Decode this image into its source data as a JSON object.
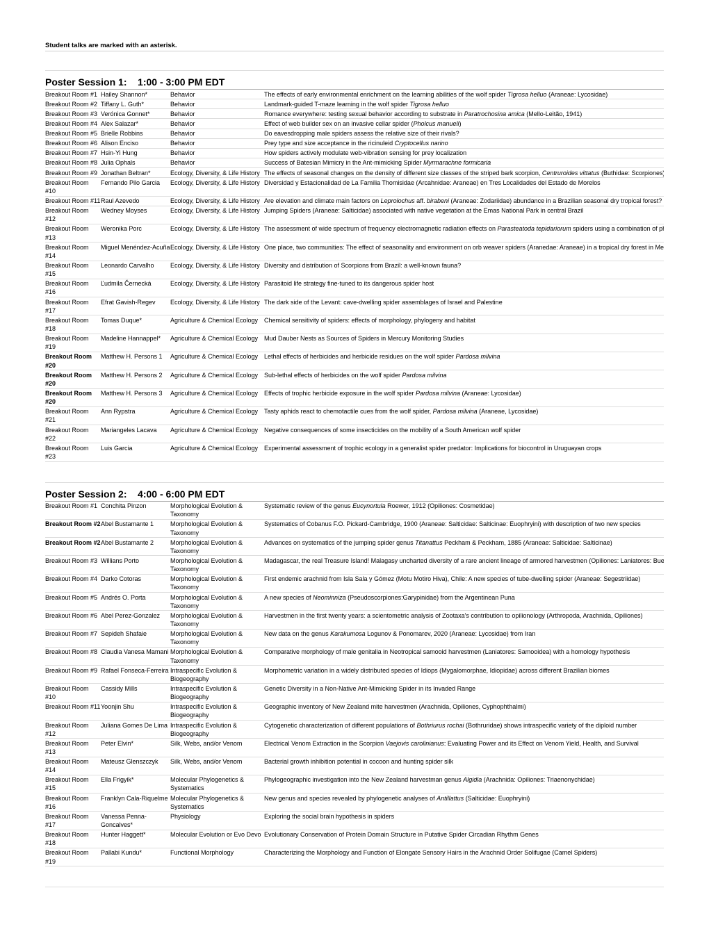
{
  "note": "Student talks are marked with an asterisk.",
  "sessions": [
    {
      "title_prefix": "Poster Session 1:",
      "title_time": "1:00 - 3:00 PM EDT",
      "rows": [
        {
          "room": "Breakout Room #1",
          "presenter": "Hailey Shannon*",
          "topic": "Behavior",
          "title_parts": [
            {
              "t": "The effects of early environmental enrichment on the learning abilities of the wolf spider "
            },
            {
              "t": "Tigrosa helluo",
              "i": true
            },
            {
              "t": " (Araneae: Lycosidae)"
            }
          ]
        },
        {
          "room": "Breakout Room #2",
          "presenter": "Tiffany L. Guth*",
          "topic": "Behavior",
          "title_parts": [
            {
              "t": "Landmark-guided T-maze learning in the wolf spider "
            },
            {
              "t": "Tigrosa helluo",
              "i": true
            }
          ]
        },
        {
          "room": "Breakout Room #3",
          "presenter": "Verónica Gonnet*",
          "topic": "Behavior",
          "title_parts": [
            {
              "t": "Romance everywhere: testing sexual behavior according to substrate in "
            },
            {
              "t": "Paratrochosina amica",
              "i": true
            },
            {
              "t": " (Mello-Leitão, 1941)"
            }
          ]
        },
        {
          "room": "Breakout Room #4",
          "presenter": "Alex Salazar*",
          "topic": "Behavior",
          "title_parts": [
            {
              "t": "Effect of web builder sex on an invasive cellar spider ("
            },
            {
              "t": "Pholcus manueli",
              "i": true
            },
            {
              "t": ")"
            }
          ]
        },
        {
          "room": "Breakout Room #5",
          "presenter": "Brielle Robbins",
          "topic": "Behavior",
          "title_parts": [
            {
              "t": "Do eavesdropping male spiders assess the relative size of their rivals?"
            }
          ]
        },
        {
          "room": "Breakout Room #6",
          "presenter": "Alison Enciso",
          "topic": "Behavior",
          "title_parts": [
            {
              "t": "Prey type and size acceptance in the ricinuleid "
            },
            {
              "t": "Cryptocellus narino",
              "i": true
            }
          ]
        },
        {
          "room": "Breakout Room #7",
          "presenter": "Hsin-Yi Hung",
          "topic": "Behavior",
          "title_parts": [
            {
              "t": "How spiders actively modulate web-vibration sensing for prey localization"
            }
          ]
        },
        {
          "room": "Breakout Room #8",
          "presenter": "Julia Ophals",
          "topic": "Behavior",
          "title_parts": [
            {
              "t": "Success of Batesian Mimicry in the Ant-mimicking Spider "
            },
            {
              "t": "Myrmarachne formicaria",
              "i": true
            }
          ]
        },
        {
          "room": "Breakout Room #9",
          "presenter": "Jonathan Beltran*",
          "topic": "Ecology, Diversity, & Life History",
          "title_parts": [
            {
              "t": "The effects of seasonal changes on the density of different size classes of the striped bark scorpion, "
            },
            {
              "t": "Centruroides vittatus",
              "i": true
            },
            {
              "t": " (Buthidae: Scorpiones)"
            }
          ]
        },
        {
          "room": "Breakout Room #10",
          "presenter": "Fernando Pilo Garcia",
          "topic": "Ecology, Diversity, & Life History",
          "title_parts": [
            {
              "t": "Diversidad y Estacionalidad de La Familia Thomisidae (Arcahnidae: Araneae) en Tres Localidades del Estado de Morelos"
            }
          ]
        },
        {
          "room": "Breakout Room #11",
          "presenter": "Raul Azevedo",
          "topic": "Ecology, Diversity, & Life History",
          "title_parts": [
            {
              "t": "Are elevation and climate main factors on "
            },
            {
              "t": "Leprolochus",
              "i": true
            },
            {
              "t": " aff. "
            },
            {
              "t": "birabeni",
              "i": true
            },
            {
              "t": " (Araneae: Zodariidae) abundance in a Brazilian seasonal dry tropical forest?"
            }
          ]
        },
        {
          "room": "Breakout Room #12",
          "presenter": "Wedney Moyses",
          "topic": "Ecology, Diversity, & Life History",
          "title_parts": [
            {
              "t": "Jumping Spiders (Araneae: Salticidae) associated with native vegetation at the Emas National Park in central Brazil"
            }
          ]
        },
        {
          "room": "Breakout Room #13",
          "presenter": "Weronika Porc",
          "topic": "Ecology, Diversity, & Life History",
          "title_parts": [
            {
              "t": "The assessment of wide spectrum of frequency electromagnetic radiation effects on "
            },
            {
              "t": "Parasteatoda tepidariorum",
              "i": true
            },
            {
              "t": " spiders using a combination of physiological and molecular markers"
            }
          ]
        },
        {
          "room": "Breakout Room #14",
          "presenter": "Miguel Menéndez-Acuña",
          "topic": "Ecology, Diversity, & Life History",
          "title_parts": [
            {
              "t": "One place, two communities: The effect of seasonality and environment on orb weaver spiders (Aranedae: Araneae) in a tropical dry forest in Mexico"
            }
          ]
        },
        {
          "room": "Breakout Room #15",
          "presenter": "Leonardo Carvalho",
          "topic": "Ecology, Diversity, & Life History",
          "title_parts": [
            {
              "t": "Diversity and distribution of Scorpions from Brazil: a well-known fauna?"
            }
          ]
        },
        {
          "room": "Breakout Room #16",
          "presenter": "Ľudmila Černecká",
          "topic": "Ecology, Diversity, & Life History",
          "title_parts": [
            {
              "t": "Parasitoid life strategy fine-tuned to its dangerous spider host"
            }
          ]
        },
        {
          "room": "Breakout Room #17",
          "presenter": "Efrat Gavish-Regev",
          "topic": "Ecology, Diversity, & Life History",
          "title_parts": [
            {
              "t": "The dark side of the Levant: cave-dwelling spider assemblages of Israel and Palestine"
            }
          ]
        },
        {
          "room": "Breakout Room #18",
          "presenter": "Tomas Duque*",
          "topic": "Agriculture & Chemical Ecology",
          "title_parts": [
            {
              "t": "Chemical sensitivity of spiders: effects of morphology, phylogeny and habitat"
            }
          ]
        },
        {
          "room": "Breakout Room #19",
          "presenter": "Madeline Hannappel*",
          "topic": "Agriculture & Chemical Ecology",
          "title_parts": [
            {
              "t": "Mud Dauber Nests as Sources of Spiders in Mercury Monitoring Studies"
            }
          ]
        },
        {
          "room": "Breakout Room #20",
          "room_bold": true,
          "presenter": "Matthew H. Persons 1",
          "topic": "Agriculture & Chemical Ecology",
          "title_parts": [
            {
              "t": "Lethal effects of herbicides and herbicide residues on the wolf spider "
            },
            {
              "t": "Pardosa milvina",
              "i": true
            }
          ]
        },
        {
          "room": "Breakout Room #20",
          "room_bold": true,
          "presenter": "Matthew H. Persons 2",
          "topic": "Agriculture & Chemical Ecology",
          "title_parts": [
            {
              "t": "Sub-lethal effects of herbicides on the wolf spider "
            },
            {
              "t": "Pardosa milvina",
              "i": true
            }
          ]
        },
        {
          "room": "Breakout Room #20",
          "room_bold": true,
          "presenter": "Matthew H. Persons 3",
          "topic": "Agriculture & Chemical Ecology",
          "title_parts": [
            {
              "t": "Effects of trophic herbicide exposure in the wolf spider "
            },
            {
              "t": "Pardosa milvina",
              "i": true
            },
            {
              "t": " (Araneae: Lycosidae)"
            }
          ]
        },
        {
          "room": "Breakout Room #21",
          "presenter": "Ann Rypstra",
          "topic": "Agriculture & Chemical Ecology",
          "title_parts": [
            {
              "t": "Tasty aphids react to chemotactile cues from the wolf spider, "
            },
            {
              "t": "Pardosa milvina",
              "i": true
            },
            {
              "t": " (Araneae, Lycosidae)"
            }
          ]
        },
        {
          "room": "Breakout Room #22",
          "presenter": "Mariangeles Lacava",
          "topic": "Agriculture & Chemical Ecology",
          "title_parts": [
            {
              "t": "Negative consequences of some insecticides on the mobility of a South American wolf spider"
            }
          ]
        },
        {
          "room": "Breakout Room #23",
          "presenter": "Luis Garcia",
          "topic": "Agriculture & Chemical Ecology",
          "title_parts": [
            {
              "t": "Experimental assessment of trophic ecology in a generalist spider predator: Implications for biocontrol in Uruguayan crops"
            }
          ]
        }
      ]
    },
    {
      "title_prefix": "Poster Session 2:",
      "title_time": "4:00 - 6:00 PM EDT",
      "rows": [
        {
          "room": "Breakout Room #1",
          "presenter": "Conchita Pinzon",
          "topic": "Morphological Evolution & Taxonomy",
          "title_parts": [
            {
              "t": "Systematic review of the genus "
            },
            {
              "t": "Eucynortula",
              "i": true
            },
            {
              "t": " Roewer, 1912 (Opiliones: Cosmetidae)"
            }
          ]
        },
        {
          "room": "Breakout Room #2",
          "room_bold": true,
          "presenter": "Abel Bustamante 1",
          "topic": "Morphological Evolution & Taxonomy",
          "title_parts": [
            {
              "t": "Systematics of Cobanus F.O. Pickard-Cambridge, 1900 (Araneae: Salticidae: Salticinae: Euophryini) with description of two new species"
            }
          ]
        },
        {
          "room": "Breakout Room #2",
          "room_bold": true,
          "presenter": "Abel Bustamante 2",
          "topic": "Morphological Evolution & Taxonomy",
          "title_parts": [
            {
              "t": "Advances on systematics of the jumping spider genus "
            },
            {
              "t": "Titanattus",
              "i": true
            },
            {
              "t": " Peckham & Peckham, 1885 (Araneae: Salticidae: Salticinae)"
            }
          ]
        },
        {
          "room": "Breakout Room #3",
          "presenter": "Willians Porto",
          "topic": "Morphological Evolution & Taxonomy",
          "title_parts": [
            {
              "t": "Madagascar, the real Treasure Island! Malagasy uncharted diversity of a rare ancient lineage of armored harvestmen (Opiliones: Laniatores: Buemarinoidae)"
            }
          ]
        },
        {
          "room": "Breakout Room #4",
          "presenter": "Darko Cotoras",
          "topic": "Morphological Evolution & Taxonomy",
          "title_parts": [
            {
              "t": "First endemic arachnid from Isla Sala y Gómez (Motu Motiro Hiva), Chile: A new species of tube-dwelling spider (Araneae: Segestriidae)"
            }
          ]
        },
        {
          "room": "Breakout Room #5",
          "presenter": "Andrés O. Porta",
          "topic": "Morphological Evolution & Taxonomy",
          "title_parts": [
            {
              "t": "A new species of "
            },
            {
              "t": "Neominniza",
              "i": true
            },
            {
              "t": " (Pseudoscorpiones:Garypinidae) from the Argentinean Puna"
            }
          ]
        },
        {
          "room": "Breakout Room #6",
          "presenter": "Abel Perez-Gonzalez",
          "topic": "Morphological Evolution & Taxonomy",
          "title_parts": [
            {
              "t": "Harvestmen in the first twenty years: a scientometric analysis of Zootaxa's contribution to opilionology (Arthropoda, Arachnida, Opiliones)"
            }
          ]
        },
        {
          "room": "Breakout Room #7",
          "presenter": "Sepideh Shafaie",
          "topic": "Morphological Evolution & Taxonomy",
          "title_parts": [
            {
              "t": "New data on the genus "
            },
            {
              "t": "Karakumosa",
              "i": true
            },
            {
              "t": " Logunov & Ponomarev, 2020 (Araneae: Lycosidae) from Iran"
            }
          ]
        },
        {
          "room": "Breakout Room #8",
          "presenter": "Claudia Vanesa Mamani",
          "topic": "Morphological Evolution & Taxonomy",
          "title_parts": [
            {
              "t": "Comparative morphology of male genitalia in Neotropical samooid harvestmen (Laniatores: Samooidea) with a homology hypothesis"
            }
          ]
        },
        {
          "room": "Breakout Room #9",
          "presenter": "Rafael Fonseca-Ferreira",
          "topic": "Intraspecific Evolution & Biogeography",
          "title_parts": [
            {
              "t": "Morphometric variation in a widely distributed species of Idiops (Mygalomorphae, Idiopidae) across different Brazilian biomes"
            }
          ]
        },
        {
          "room": "Breakout Room #10",
          "presenter": "Cassidy Mills",
          "topic": "Intraspecific Evolution & Biogeography",
          "title_parts": [
            {
              "t": "Genetic Diversity in a Non-Native Ant-Mimicking Spider in its Invaded Range"
            }
          ]
        },
        {
          "room": "Breakout Room #11",
          "presenter": "Yoonjin Shu",
          "topic": "Intraspecific Evolution & Biogeography",
          "title_parts": [
            {
              "t": "Geographic inventory of New Zealand mite harvestmen (Arachnida, Opiliones, Cyphophthalmi)"
            }
          ]
        },
        {
          "room": "Breakout Room #12",
          "presenter": "Juliana Gomes De Lima",
          "topic": "Intraspecific Evolution & Biogeography",
          "title_parts": [
            {
              "t": "Cytogenetic characterization of different populations of "
            },
            {
              "t": "Bothriurus rochai",
              "i": true
            },
            {
              "t": " (Bothruridae) shows intraspecific variety of the diploid number"
            }
          ]
        },
        {
          "room": "Breakout Room #13",
          "presenter": "Peter Elvin*",
          "topic": "Silk, Webs, and/or Venom",
          "title_parts": [
            {
              "t": "Electrical Venom Extraction in the Scorpion "
            },
            {
              "t": "Vaejovis carolinianus",
              "i": true
            },
            {
              "t": ": Evaluating Power and its Effect on Venom Yield, Health, and Survival"
            }
          ]
        },
        {
          "room": "Breakout Room #14",
          "presenter": "Mateusz Glenszczyk",
          "topic": "Silk, Webs, and/or Venom",
          "title_parts": [
            {
              "t": "Bacterial growth inhibition potential in cocoon and hunting spider silk"
            }
          ]
        },
        {
          "room": "Breakout Room #15",
          "presenter": "Ella Frigyik*",
          "topic": "Molecular Phylogenetics & Systematics",
          "title_parts": [
            {
              "t": "Phylogeographic investigation into the New Zealand harvestman genus "
            },
            {
              "t": "Algidia",
              "i": true
            },
            {
              "t": " (Arachnida: Opiliones: Triaenonychidae)"
            }
          ]
        },
        {
          "room": "Breakout Room #16",
          "presenter": "Franklyn Cala-Riquelme",
          "topic": "Molecular Phylogenetics & Systematics",
          "title_parts": [
            {
              "t": "New genus and species revealed by phylogenetic analyses of "
            },
            {
              "t": "Antillattus",
              "i": true
            },
            {
              "t": " (Salticidae: Euophryini)"
            }
          ]
        },
        {
          "room": "Breakout Room #17",
          "presenter": "Vanessa Penna-Goncalves*",
          "topic": "Physiology",
          "title_parts": [
            {
              "t": "Exploring the social brain hypothesis in spiders"
            }
          ]
        },
        {
          "room": "Breakout Room #18",
          "presenter": "Hunter Haggett*",
          "topic": "Molecular Evolution or Evo Devo",
          "title_parts": [
            {
              "t": "Evolutionary Conservation of Protein Domain Structure in Putative Spider Circadian Rhythm Genes"
            }
          ]
        },
        {
          "room": "Breakout Room #19",
          "presenter": "Pallabi Kundu*",
          "topic": "Functional Morphology",
          "title_parts": [
            {
              "t": "Characterizing the Morphology and Function of Elongate Sensory Hairs in the Arachnid Order Solifugae (Camel Spiders)"
            }
          ]
        }
      ]
    }
  ]
}
